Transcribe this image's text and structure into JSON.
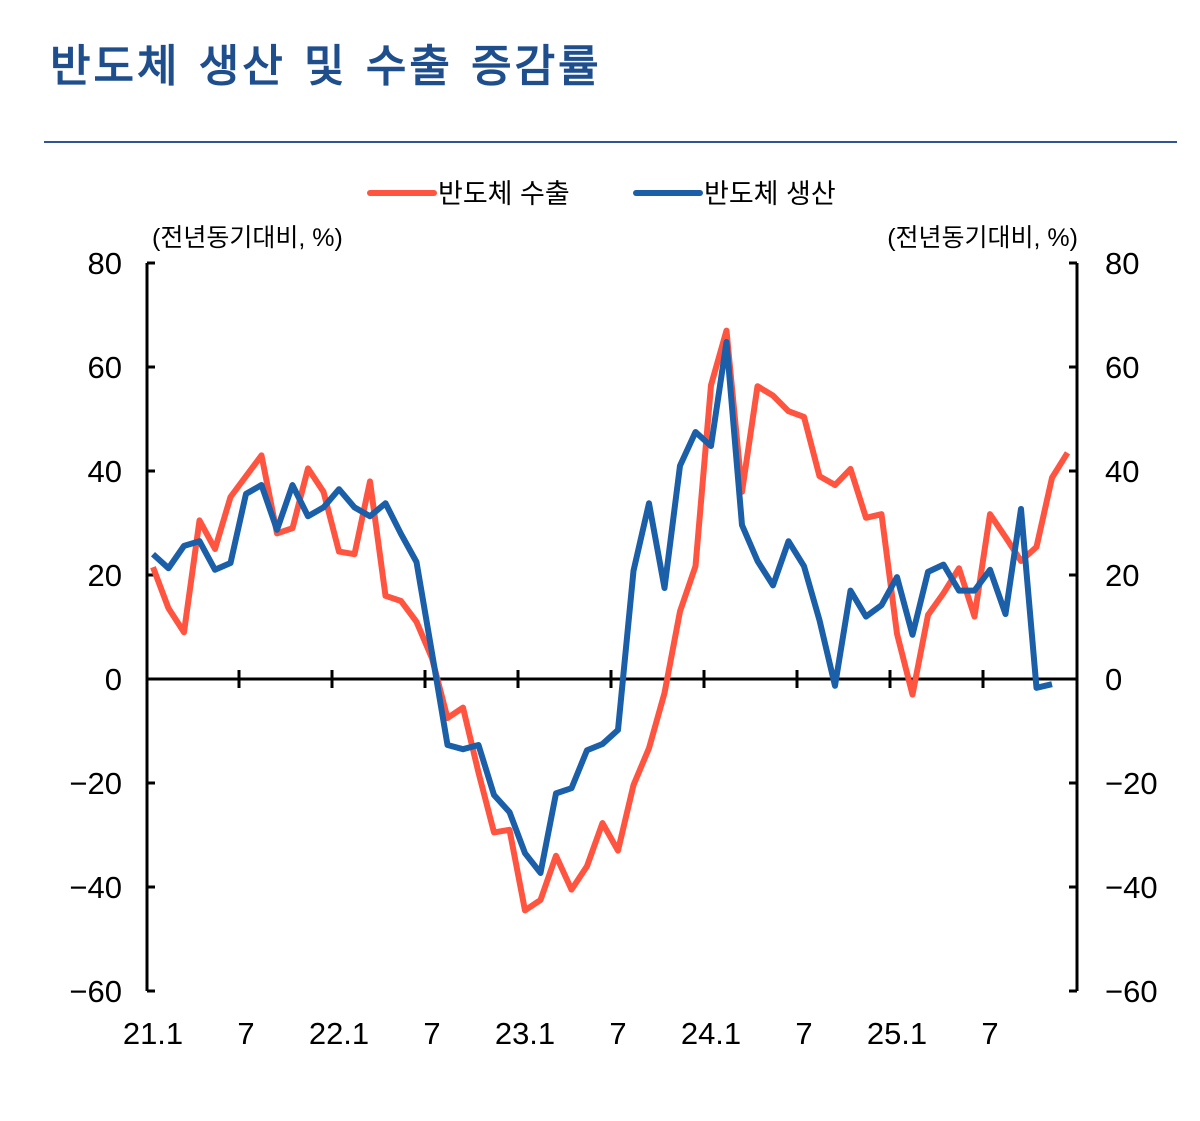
{
  "title": "반도체 생산 및 수출 증감률",
  "chart_data": {
    "type": "line",
    "title": "반도체 생산 및 수출 증감률",
    "ylabel_left": "(전년동기대비, %)",
    "ylabel_right": "(전년동기대비, %)",
    "ylim": [
      -60,
      80
    ],
    "yticks": [
      "80",
      "60",
      "40",
      "20",
      "0",
      "−20",
      "−40",
      "−60"
    ],
    "ytick_values": [
      80,
      60,
      40,
      20,
      0,
      -20,
      -40,
      -60
    ],
    "xtick_labels": [
      "21.1",
      "7",
      "22.1",
      "7",
      "23.1",
      "7",
      "24.1",
      "7",
      "25.1",
      "7"
    ],
    "x_start": "21.1",
    "x_frequency": "monthly",
    "legend_position": "top",
    "grid": false,
    "series": [
      {
        "name": "반도체 수출",
        "color": "#ff5540",
        "values": [
          21.5,
          13.6,
          9,
          30.5,
          25,
          35,
          39,
          43,
          28,
          29,
          40.5,
          36,
          24.5,
          24,
          38,
          16,
          15,
          11,
          4,
          -7.5,
          -5.5,
          -18,
          -29.5,
          -29,
          -44.5,
          -42.5,
          -34,
          -40.5,
          -36,
          -27.7,
          -33,
          -20.4,
          -13.3,
          -2.7,
          13,
          21.7,
          56.5,
          67,
          36,
          56.3,
          54.5,
          51.5,
          50.4,
          39,
          37.3,
          40.4,
          31,
          31.7,
          8.7,
          -3,
          12.3,
          16.5,
          21.3,
          12,
          31.7,
          27.3,
          22.7,
          25.4,
          38.7,
          43.5
        ]
      },
      {
        "name": "반도체 생산",
        "color": "#1a5fa8",
        "values": [
          24,
          21.3,
          25.6,
          26.5,
          21,
          22.3,
          35.6,
          37.3,
          28.7,
          37.3,
          31.3,
          33,
          36.5,
          33,
          31.3,
          33.8,
          27.9,
          22.5,
          5,
          -12.7,
          -13.5,
          -12.7,
          -22.3,
          -25.6,
          -33.5,
          -37.3,
          -22,
          -21,
          -13.7,
          -12.5,
          -9.8,
          20.8,
          33.8,
          17.5,
          41,
          47.5,
          44.8,
          64.8,
          29.6,
          22.7,
          18,
          26.5,
          21.7,
          11.3,
          -1.3,
          17,
          12,
          14.2,
          19.6,
          8.5,
          20.6,
          22,
          17,
          17,
          21,
          12.5,
          32.7,
          -1.7,
          -1
        ]
      }
    ]
  }
}
